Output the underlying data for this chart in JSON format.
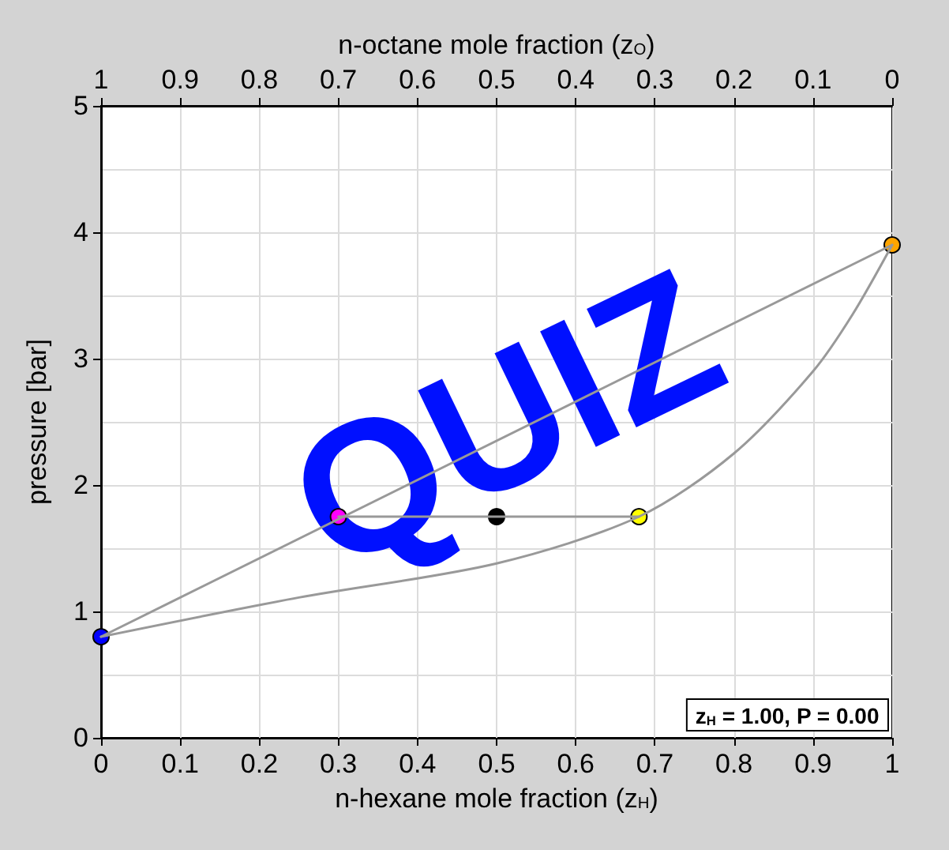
{
  "chart_data": {
    "type": "line",
    "xlabel": "n-hexane mole fraction (z$_{H}$)",
    "x2label": "n-octane mole fraction (z$_{O}$)",
    "ylabel": "pressure [bar]",
    "xlim": [
      0,
      1
    ],
    "xticks": [
      0,
      0.1,
      0.2,
      0.3,
      0.4,
      0.5,
      0.6,
      0.7,
      0.8,
      0.9,
      1
    ],
    "x2lim": [
      1,
      0
    ],
    "x2ticks": [
      1,
      0.9,
      0.8,
      0.7,
      0.6,
      0.5,
      0.4,
      0.3,
      0.2,
      0.1,
      0
    ],
    "ylim": [
      0,
      5
    ],
    "yticks": [
      0,
      1,
      2,
      3,
      4,
      5
    ],
    "grid": true,
    "marker": "circle",
    "annotations": [
      "z$_{H}$ = 1.00, P = 0.00",
      "QUIZ"
    ],
    "series": [
      {
        "type": "line",
        "marker": "none",
        "color": "#999999",
        "x": [
          0,
          1
        ],
        "values": [
          0.8,
          3.9
        ]
      },
      {
        "type": "line",
        "marker": "none",
        "color": "#999999",
        "x": [
          0,
          0.25,
          0.5,
          0.68,
          0.8,
          0.9,
          0.95,
          1
        ],
        "values": [
          0.8,
          1.11,
          1.38,
          1.75,
          2.25,
          2.9,
          3.35,
          3.9
        ]
      },
      {
        "type": "line",
        "marker": "none",
        "color": "#999999",
        "x": [
          0.3,
          0.68
        ],
        "values": [
          1.75,
          1.75
        ]
      },
      {
        "type": "scatter",
        "color": "#0000ff",
        "x": [
          0
        ],
        "values": [
          0.8
        ]
      },
      {
        "type": "scatter",
        "color": "#ffa500",
        "x": [
          1
        ],
        "values": [
          3.9
        ]
      },
      {
        "type": "scatter",
        "color": "#ff00ff",
        "x": [
          0.3
        ],
        "values": [
          1.75
        ]
      },
      {
        "type": "scatter",
        "color": "#000000",
        "x": [
          0.5
        ],
        "values": [
          1.75
        ]
      },
      {
        "type": "scatter",
        "color": "#ffff00",
        "x": [
          0.68
        ],
        "values": [
          1.75
        ]
      }
    ]
  }
}
